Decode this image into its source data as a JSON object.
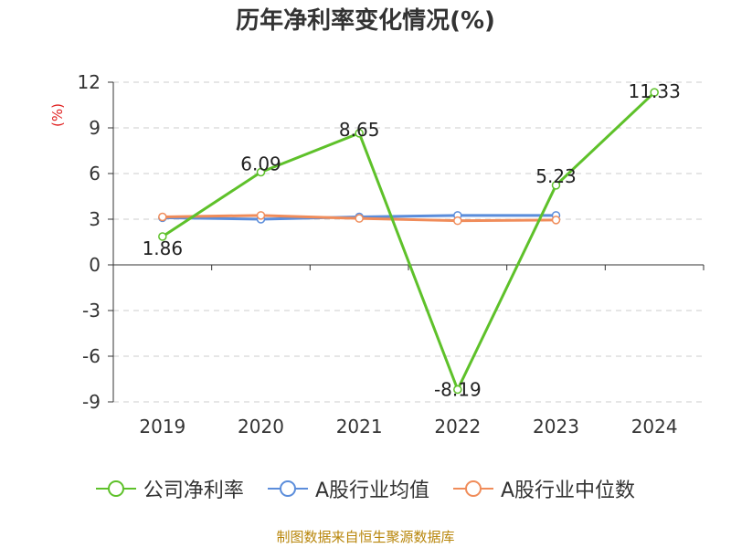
{
  "chart_data": {
    "type": "line",
    "title": "历年净利率变化情况(%)",
    "ylabel": "(%)",
    "xlabel": "",
    "categories": [
      "2019",
      "2020",
      "2021",
      "2022",
      "2023",
      "2024"
    ],
    "ylim": [
      -9,
      12
    ],
    "yticks": [
      "12",
      "9",
      "6",
      "3",
      "0",
      "-3",
      "-6",
      "-9"
    ],
    "ytick_values": [
      12,
      9,
      6,
      3,
      0,
      -3,
      -6,
      -9
    ],
    "grid": true,
    "legend_position": "bottom",
    "series": [
      {
        "name": "公司净利率",
        "color": "#5ec12a",
        "values": [
          1.86,
          6.09,
          8.65,
          -8.19,
          5.23,
          11.33
        ],
        "labels": [
          "1.86",
          "6.09",
          "8.65",
          "-8.19",
          "5.23",
          "11.33"
        ]
      },
      {
        "name": "A股行业均值",
        "color": "#5b8ddb",
        "values": [
          3.1,
          3.0,
          3.15,
          3.25,
          3.25,
          null
        ]
      },
      {
        "name": "A股行业中位数",
        "color": "#f08c5a",
        "values": [
          3.15,
          3.25,
          3.05,
          2.9,
          2.95,
          null
        ]
      }
    ]
  },
  "source": "制图数据来自恒生聚源数据库"
}
